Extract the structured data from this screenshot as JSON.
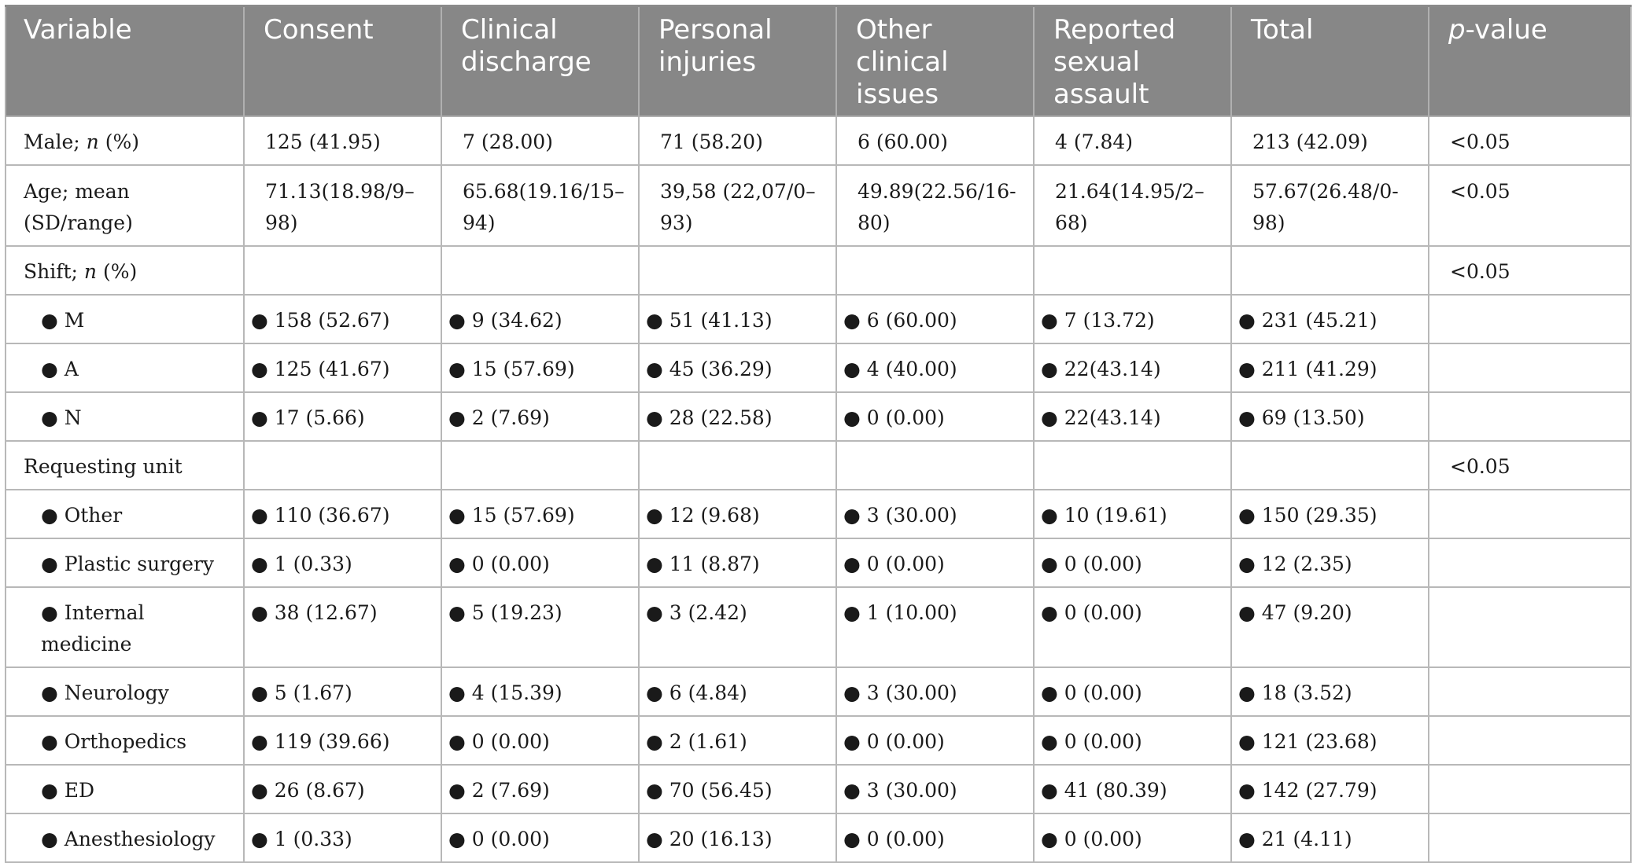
{
  "table": {
    "headers": [
      "Variable",
      "Consent",
      "Clinical discharge",
      "Personal injuries",
      "Other clinical issues",
      "Reported sexual assault",
      "Total",
      "p-value"
    ],
    "header_pvalue_italic": "p",
    "header_pvalue_rest": "-value",
    "rows": [
      {
        "label": "Male; ",
        "label_italic": "n",
        "label_rest": " (%)",
        "cells": [
          "125 (41.95)",
          "7 (28.00)",
          "71 (58.20)",
          "6 (60.00)",
          "4 (7.84)",
          "213 (42.09)",
          "<0.05"
        ]
      },
      {
        "label": "Age; mean (SD/range)",
        "cells": [
          "71.13(18.98/9–98)",
          "65.68(19.16/15–94)",
          "39,58 (22,07/0–93)",
          "49.89(22.56/16-80)",
          "21.64(14.95/2–68)",
          "57.67(26.48/0-98)",
          "<0.05"
        ]
      },
      {
        "label": "Shift; ",
        "label_italic": "n",
        "label_rest": " (%)",
        "cells": [
          "",
          "",
          "",
          "",
          "",
          "",
          "<0.05"
        ]
      },
      {
        "label": "● M",
        "cells": [
          "● 158 (52.67)",
          "● 9 (34.62)",
          "● 51 (41.13)",
          "● 6 (60.00)",
          "● 7 (13.72)",
          "● 231 (45.21)",
          ""
        ]
      },
      {
        "label": "● A",
        "cells": [
          "● 125 (41.67)",
          "● 15 (57.69)",
          "● 45 (36.29)",
          "● 4 (40.00)",
          "● 22(43.14)",
          "● 211 (41.29)",
          ""
        ]
      },
      {
        "label": "● N",
        "cells": [
          "● 17 (5.66)",
          "● 2 (7.69)",
          "● 28 (22.58)",
          "● 0 (0.00)",
          "● 22(43.14)",
          "● 69 (13.50)",
          ""
        ]
      },
      {
        "label": "Requesting unit",
        "cells": [
          "",
          "",
          "",
          "",
          "",
          "",
          "<0.05"
        ]
      },
      {
        "label": "● Other",
        "cells": [
          "● 110 (36.67)",
          "● 15 (57.69)",
          "● 12 (9.68)",
          "● 3 (30.00)",
          "● 10 (19.61)",
          "● 150 (29.35)",
          ""
        ]
      },
      {
        "label": "● Plastic surgery",
        "cells": [
          "● 1 (0.33)",
          "● 0 (0.00)",
          "● 11 (8.87)",
          "● 0 (0.00)",
          "● 0 (0.00)",
          "● 12 (2.35)",
          ""
        ]
      },
      {
        "label": "● Internal medicine",
        "cells": [
          "● 38 (12.67)",
          "● 5 (19.23)",
          "● 3 (2.42)",
          "● 1 (10.00)",
          "● 0 (0.00)",
          "● 47 (9.20)",
          ""
        ]
      },
      {
        "label": "● Neurology",
        "cells": [
          "● 5 (1.67)",
          "● 4 (15.39)",
          "● 6 (4.84)",
          "● 3 (30.00)",
          "● 0 (0.00)",
          "● 18 (3.52)",
          ""
        ]
      },
      {
        "label": "● Orthopedics",
        "cells": [
          "● 119 (39.66)",
          "● 0 (0.00)",
          "● 2 (1.61)",
          "● 0 (0.00)",
          "● 0 (0.00)",
          "● 121 (23.68)",
          ""
        ]
      },
      {
        "label": "● ED",
        "cells": [
          "● 26 (8.67)",
          "● 2 (7.69)",
          "● 70 (56.45)",
          "● 3 (30.00)",
          "● 41 (80.39)",
          "● 142 (27.79)",
          ""
        ]
      },
      {
        "label": "● Anesthesiology",
        "cells": [
          "● 1 (0.33)",
          "● 0 (0.00)",
          "● 20 (16.13)",
          "● 0 (0.00)",
          "● 0 (0.00)",
          "● 21 (4.11)",
          ""
        ]
      }
    ]
  }
}
